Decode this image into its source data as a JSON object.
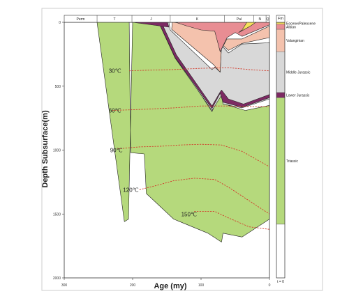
{
  "chart_data": {
    "type": "area",
    "title": "",
    "xlabel": "Age (my)",
    "ylabel": "Depth Subsurface(m)",
    "xlim": [
      300,
      0
    ],
    "ylim": [
      0,
      2000
    ],
    "x_ticks": [
      300,
      200,
      100,
      0
    ],
    "y_ticks": [
      0,
      500,
      1000,
      1500,
      2000
    ],
    "periods": [
      {
        "label": "Perm",
        "from": 300,
        "to": 252
      },
      {
        "label": "T",
        "from": 252,
        "to": 201
      },
      {
        "label": "J",
        "from": 201,
        "to": 145
      },
      {
        "label": "K",
        "from": 145,
        "to": 66
      },
      {
        "label": "Pal",
        "from": 66,
        "to": 23
      },
      {
        "label": "N",
        "from": 23,
        "to": 5
      },
      {
        "label": "Q",
        "from": 5,
        "to": 0
      }
    ],
    "formation_header": "Fm",
    "formations": [
      {
        "label": "Eocene/Paleocene",
        "top": 0,
        "base": 15,
        "color": "#f5e15a"
      },
      {
        "label": "Albian",
        "top": 15,
        "base": 55,
        "color": "#e88d93"
      },
      {
        "label": "Valanginian",
        "top": 55,
        "base": 230,
        "color": "#f4c2ad"
      },
      {
        "label": "Middle Jurassic",
        "top": 230,
        "base": 550,
        "color": "#d8d8d8"
      },
      {
        "label": "Lower Jurassic",
        "top": 550,
        "base": 590,
        "color": "#7d2a63"
      },
      {
        "label": "Triassic",
        "top": 590,
        "base": 1580,
        "color": "#b5d97c"
      },
      {
        "label": "",
        "top": 1580,
        "base": 2000,
        "color": "#ffffff"
      }
    ],
    "time_label": "t = 0",
    "series": [
      {
        "color": "#b5d97c",
        "points": [
          [
            252,
            0
          ],
          [
            205,
            0
          ],
          [
            203,
            1020
          ],
          [
            183,
            1030
          ],
          [
            180,
            1340
          ],
          [
            140,
            1540
          ],
          [
            90,
            1650
          ],
          [
            70,
            1720
          ],
          [
            68,
            1650
          ],
          [
            40,
            1680
          ],
          [
            0,
            1540
          ],
          [
            0,
            650
          ],
          [
            35,
            690
          ],
          [
            60,
            650
          ],
          [
            68,
            620
          ],
          [
            72,
            560
          ],
          [
            80,
            650
          ],
          [
            84,
            700
          ],
          [
            135,
            280
          ],
          [
            160,
            0
          ],
          [
            200,
            0
          ],
          [
            206,
            1540
          ],
          [
            212,
            1560
          ]
        ]
      },
      {
        "color": "#d8d8d8",
        "points": [
          [
            162,
            0
          ],
          [
            138,
            280
          ],
          [
            84,
            690
          ],
          [
            70,
            570
          ],
          [
            68,
            640
          ],
          [
            40,
            670
          ],
          [
            0,
            600
          ],
          [
            0,
            160
          ],
          [
            40,
            170
          ],
          [
            60,
            240
          ],
          [
            70,
            180
          ],
          [
            72,
            390
          ],
          [
            80,
            350
          ],
          [
            84,
            370
          ],
          [
            145,
            60
          ],
          [
            147,
            0
          ]
        ]
      },
      {
        "color": "#7d2a63",
        "points": [
          [
            162,
            0
          ],
          [
            138,
            275
          ],
          [
            84,
            675
          ],
          [
            72,
            555
          ],
          [
            68,
            625
          ],
          [
            40,
            665
          ],
          [
            0,
            590
          ],
          [
            0,
            565
          ],
          [
            38,
            640
          ],
          [
            60,
            600
          ],
          [
            70,
            530
          ],
          [
            72,
            545
          ],
          [
            84,
            655
          ],
          [
            136,
            255
          ],
          [
            158,
            0
          ]
        ]
      },
      {
        "color": "#7d2a63",
        "points": [
          [
            207,
            0
          ],
          [
            149,
            0
          ],
          [
            147,
            38
          ],
          [
            200,
            0
          ]
        ]
      },
      {
        "color": "#f4c2ad",
        "points": [
          [
            142,
            0
          ],
          [
            80,
            30
          ],
          [
            72,
            230
          ],
          [
            62,
            130
          ],
          [
            40,
            130
          ],
          [
            0,
            30
          ],
          [
            0,
            120
          ],
          [
            40,
            165
          ],
          [
            60,
            220
          ],
          [
            70,
            170
          ],
          [
            72,
            390
          ],
          [
            82,
            330
          ],
          [
            143,
            55
          ],
          [
            142,
            0
          ]
        ]
      },
      {
        "color": "#e88d93",
        "points": [
          [
            137,
            0
          ],
          [
            120,
            30
          ],
          [
            100,
            60
          ],
          [
            80,
            70
          ],
          [
            72,
            230
          ],
          [
            62,
            120
          ],
          [
            50,
            80
          ],
          [
            40,
            110
          ],
          [
            0,
            20
          ],
          [
            0,
            0
          ]
        ]
      },
      {
        "color": "#f5e15a",
        "points": [
          [
            33,
            0
          ],
          [
            40,
            60
          ],
          [
            45,
            80
          ],
          [
            28,
            30
          ],
          [
            20,
            0
          ]
        ]
      }
    ],
    "isotherms": [
      {
        "label": "30℃",
        "label_x": 235,
        "label_y": 380,
        "points": [
          [
            205,
            380
          ],
          [
            180,
            375
          ],
          [
            140,
            370
          ],
          [
            100,
            360
          ],
          [
            60,
            355
          ],
          [
            30,
            370
          ],
          [
            0,
            380
          ]
        ]
      },
      {
        "label": "60℃",
        "label_x": 235,
        "label_y": 690,
        "points": [
          [
            230,
            690
          ],
          [
            180,
            680
          ],
          [
            140,
            670
          ],
          [
            100,
            655
          ],
          [
            60,
            655
          ],
          [
            30,
            660
          ],
          [
            0,
            660
          ]
        ]
      },
      {
        "label": "90℃",
        "label_x": 233,
        "label_y": 1000,
        "points": [
          [
            222,
            990
          ],
          [
            190,
            975
          ],
          [
            160,
            970
          ],
          [
            130,
            960
          ],
          [
            100,
            955
          ],
          [
            70,
            960
          ],
          [
            40,
            1010
          ],
          [
            0,
            1130
          ]
        ]
      },
      {
        "label": "120℃",
        "label_x": 214,
        "label_y": 1310,
        "points": [
          [
            190,
            1310
          ],
          [
            160,
            1270
          ],
          [
            140,
            1240
          ],
          [
            110,
            1220
          ],
          [
            80,
            1230
          ],
          [
            60,
            1290
          ],
          [
            40,
            1360
          ],
          [
            0,
            1500
          ]
        ]
      },
      {
        "label": "150℃",
        "label_x": 129,
        "label_y": 1500,
        "points": [
          [
            110,
            1480
          ],
          [
            80,
            1480
          ],
          [
            60,
            1530
          ],
          [
            30,
            1600
          ],
          [
            0,
            1620
          ]
        ]
      }
    ]
  }
}
